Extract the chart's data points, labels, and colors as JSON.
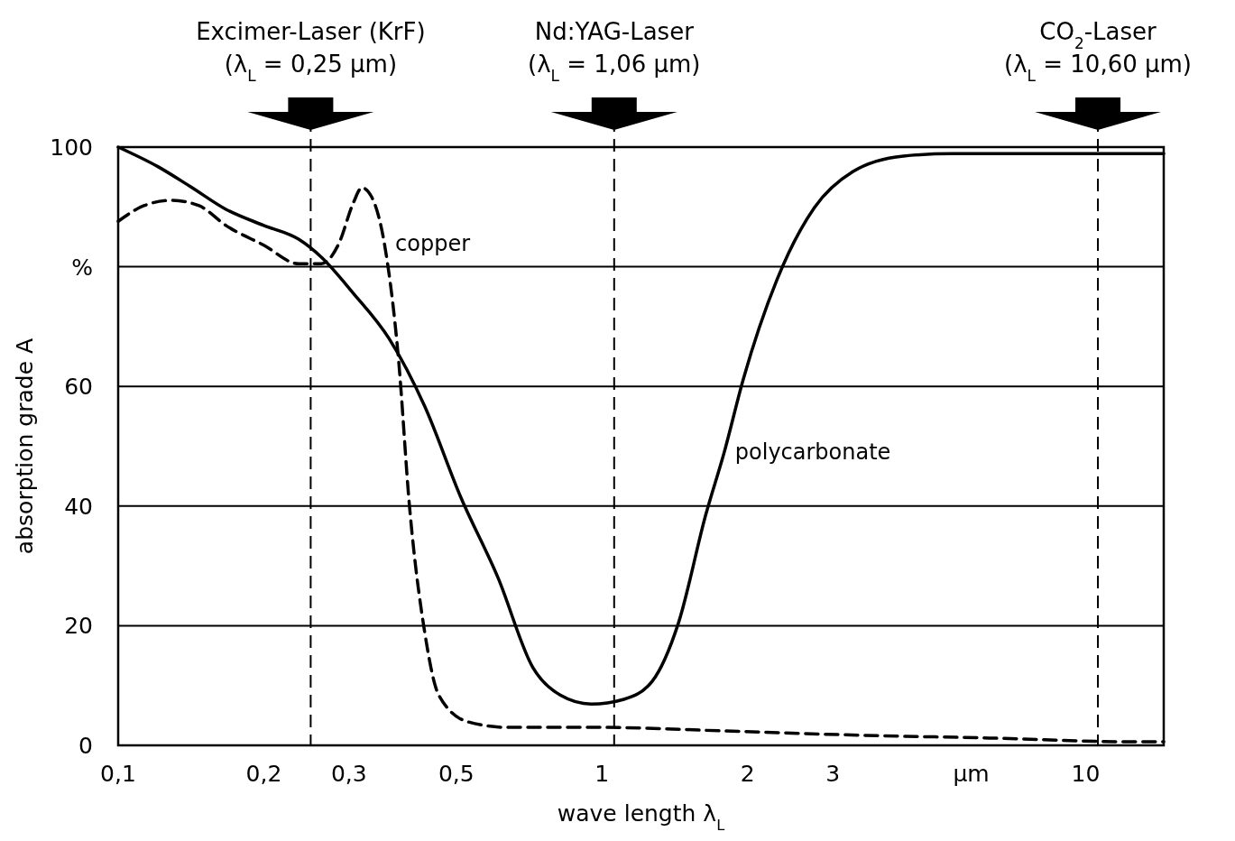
{
  "chart_data": {
    "type": "line",
    "xlabel": "wave length λ$_{L}$",
    "ylabel": "absorption grade A",
    "log": "x",
    "xlim": [
      0.1,
      14.5
    ],
    "ylim": [
      0,
      100
    ],
    "xticks": [
      {
        "value": 0.1,
        "label": "0,1"
      },
      {
        "value": 0.2,
        "label": "0,2"
      },
      {
        "value": 0.3,
        "label": "0,3"
      },
      {
        "value": 0.5,
        "label": "0,5"
      },
      1,
      2,
      3,
      {
        "value": 5.8,
        "label": "µm"
      },
      10
    ],
    "yticks": [
      0,
      20,
      40,
      60,
      {
        "value": 80,
        "label": "%"
      },
      100
    ],
    "grid": "y",
    "series": [
      {
        "name": "polycarbonate",
        "color": "#000000",
        "line_style": "solid",
        "x": [
          0.1,
          0.121,
          0.141,
          0.167,
          0.2,
          0.236,
          0.263,
          0.306,
          0.363,
          0.43,
          0.51,
          0.61,
          0.72,
          0.82,
          0.95,
          1.11,
          1.27,
          1.44,
          1.64,
          1.79,
          1.96,
          2.3,
          2.75,
          3.3,
          4.2,
          5.3,
          14.5
        ],
        "values": [
          100,
          96.7,
          93.4,
          89.6,
          86.9,
          84.6,
          81.6,
          75.6,
          68,
          56.7,
          41.6,
          28,
          13,
          8.4,
          6.9,
          7.7,
          10.7,
          20.5,
          38.6,
          49,
          61.2,
          77.8,
          89.9,
          95.9,
          98.5,
          98.9,
          98.9
        ]
      },
      {
        "name": "copper",
        "color": "#000000",
        "line_style": "dashed",
        "x": [
          0.1,
          0.113,
          0.129,
          0.147,
          0.167,
          0.2,
          0.236,
          0.263,
          0.286,
          0.306,
          0.319,
          0.334,
          0.355,
          0.38,
          0.4,
          0.43,
          0.46,
          0.53,
          0.64,
          1,
          1.8,
          3.4,
          6.5,
          12.4,
          14.5
        ],
        "values": [
          87.6,
          90.2,
          91.1,
          90.2,
          86.9,
          83.6,
          80.5,
          80.5,
          83.9,
          90.6,
          93.2,
          91.7,
          83.9,
          64.3,
          40.1,
          19,
          8.4,
          3.9,
          3,
          3,
          2.4,
          1.7,
          1.2,
          0.6,
          0.6
        ]
      }
    ],
    "ref_lines": [
      {
        "axis": "x",
        "value": 0.25,
        "label": "Excimer-Laser (KrF)\n(λ$_{L}$ = 0,25 µm)",
        "line_style": "dashed"
      },
      {
        "axis": "x",
        "value": 1.06,
        "label": "Nd:YAG-Laser\n(λ$_{L}$ = 1,06 µm)",
        "line_style": "dashed"
      },
      {
        "axis": "x",
        "value": 10.6,
        "label": "CO$_{2}$-Laser\n(λ$_{L}$ = 10,60 µm)",
        "line_style": "dashed"
      }
    ]
  }
}
